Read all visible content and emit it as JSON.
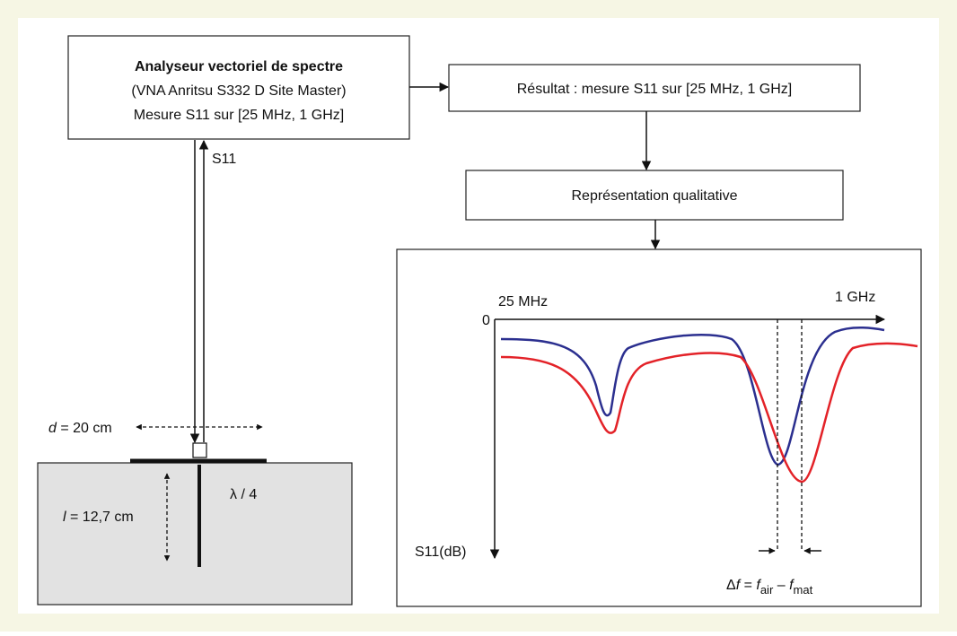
{
  "analyzer": {
    "title": "Analyseur vectoriel de spectre",
    "model": "(VNA Anritsu  S332 D Site Master)",
    "measure": "Mesure S11 sur [25 MHz, 1 GHz]"
  },
  "result": "Résultat : mesure S11 sur [25 MHz, 1 GHz]",
  "representation": "Représentation qualitative",
  "cable_label": "S11",
  "probe": {
    "d_symbol": "d",
    "d_text": " = 20 cm",
    "l_symbol": "l",
    "l_text": " = 12,7 cm",
    "lambda": "λ / 4"
  },
  "plot": {
    "x_start": "25 MHz",
    "x_end": "1 GHz",
    "origin": "0",
    "y_label": "S11(dB)",
    "delta": {
      "delta": "Δ",
      "f1": "f",
      "eq": " = ",
      "f2": "f",
      "air": "air",
      "minus": " – ",
      "f3": "f",
      "mat": "mat"
    }
  }
}
